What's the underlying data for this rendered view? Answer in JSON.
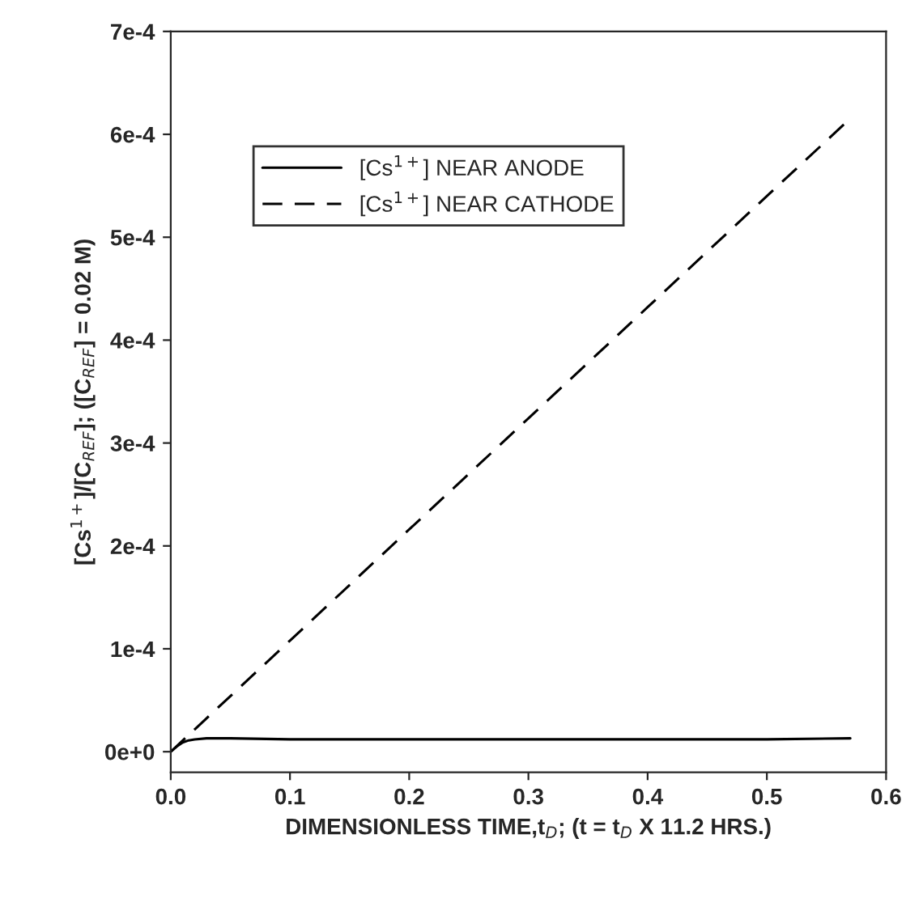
{
  "chart_data": {
    "type": "line",
    "xlabel": "DIMENSIONLESS TIME,t$_{D}$; (t = t$_{D}$ X 11.2 HRS.)",
    "ylabel": "[Cs$^{1+}$]/[C$_{REF}$]; ([C$_{REF}$] = 0.02 M)",
    "xlim": [
      0.0,
      0.6
    ],
    "xticks": [
      {
        "value": 0.0,
        "label": "0.0"
      },
      0.1,
      0.2,
      0.3,
      0.4,
      0.5,
      0.6
    ],
    "ylim": [
      -2e-05,
      0.0007
    ],
    "yticks": [
      {
        "value": 0,
        "label": "0e+0"
      },
      {
        "value": 0.0001,
        "label": "1e-4"
      },
      {
        "value": 0.0002,
        "label": "2e-4"
      },
      {
        "value": 0.0003,
        "label": "3e-4"
      },
      {
        "value": 0.0004,
        "label": "4e-4"
      },
      {
        "value": 0.0005,
        "label": "5e-4"
      },
      {
        "value": 0.0006,
        "label": "6e-4"
      },
      {
        "value": 0.0007,
        "label": "7e-4"
      }
    ],
    "grid": false,
    "legend": "top left",
    "series": [
      {
        "name": "[Cs$^{1+}$] NEAR ANODE",
        "color": "#000000",
        "line_style": "solid",
        "x": [
          0.0,
          0.005,
          0.01,
          0.015,
          0.02,
          0.03,
          0.05,
          0.1,
          0.2,
          0.3,
          0.4,
          0.5,
          0.57
        ],
        "values": [
          0.0,
          5e-06,
          9e-06,
          1.1e-05,
          1.2e-05,
          1.3e-05,
          1.3e-05,
          1.2e-05,
          1.2e-05,
          1.2e-05,
          1.2e-05,
          1.2e-05,
          1.3e-05
        ]
      },
      {
        "name": "[Cs$^{1+}$] NEAR CATHODE",
        "color": "#000000",
        "line_style": "dashed",
        "x": [
          0.0,
          0.1,
          0.2,
          0.3,
          0.4,
          0.5,
          0.565
        ],
        "values": [
          0.0,
          0.000108,
          0.000216,
          0.000324,
          0.000432,
          0.00054,
          0.00061
        ]
      }
    ]
  }
}
